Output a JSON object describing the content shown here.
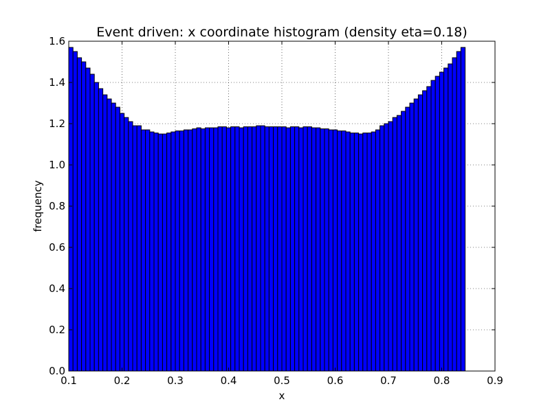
{
  "chart_data": {
    "type": "bar",
    "title": "Event driven: x coordinate histogram (density eta=0.18)",
    "xlabel": "x",
    "ylabel": "frequency",
    "xlim": [
      0.1,
      0.9
    ],
    "ylim": [
      0.0,
      1.6
    ],
    "grid": true,
    "bar_color": "#0000ff",
    "edge_color": "#000000",
    "x_ticks": [
      "0.1",
      "0.2",
      "0.3",
      "0.4",
      "0.5",
      "0.6",
      "0.7",
      "0.8",
      "0.9"
    ],
    "y_ticks": [
      "0.0",
      "0.2",
      "0.4",
      "0.6",
      "0.8",
      "1.0",
      "1.2",
      "1.4",
      "1.6"
    ],
    "bin_start": 0.1,
    "bin_width": 0.008,
    "values": [
      1.57,
      1.55,
      1.52,
      1.5,
      1.47,
      1.44,
      1.4,
      1.37,
      1.34,
      1.32,
      1.3,
      1.28,
      1.25,
      1.23,
      1.21,
      1.19,
      1.19,
      1.17,
      1.17,
      1.16,
      1.155,
      1.15,
      1.15,
      1.155,
      1.16,
      1.165,
      1.165,
      1.17,
      1.17,
      1.175,
      1.18,
      1.175,
      1.18,
      1.18,
      1.18,
      1.185,
      1.185,
      1.18,
      1.185,
      1.185,
      1.18,
      1.185,
      1.185,
      1.185,
      1.19,
      1.19,
      1.185,
      1.185,
      1.185,
      1.185,
      1.185,
      1.18,
      1.185,
      1.185,
      1.18,
      1.185,
      1.185,
      1.18,
      1.18,
      1.175,
      1.175,
      1.17,
      1.17,
      1.165,
      1.165,
      1.16,
      1.155,
      1.155,
      1.15,
      1.155,
      1.155,
      1.16,
      1.17,
      1.19,
      1.2,
      1.21,
      1.23,
      1.24,
      1.26,
      1.28,
      1.3,
      1.32,
      1.34,
      1.36,
      1.38,
      1.41,
      1.43,
      1.45,
      1.47,
      1.49,
      1.52,
      1.55,
      1.57
    ]
  }
}
